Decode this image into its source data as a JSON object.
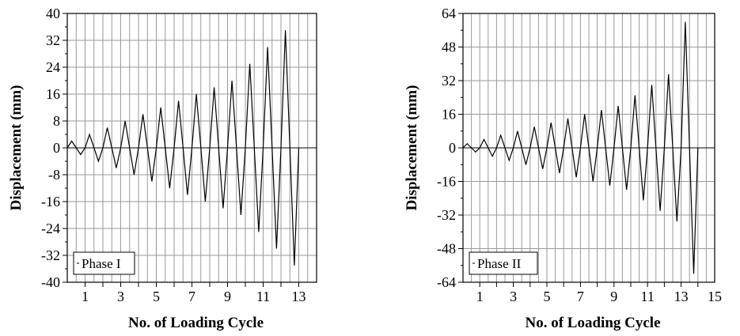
{
  "chart_data": [
    {
      "type": "line",
      "xlabel": "No. of Loading Cycle",
      "ylabel": "Displacement (mm)",
      "xlim": [
        0,
        14
      ],
      "ylim": [
        -40,
        40
      ],
      "xticks": [
        "1",
        "3",
        "5",
        "7",
        "9",
        "11",
        "13"
      ],
      "yticks": [
        "40",
        "32",
        "24",
        "16",
        "8",
        "0",
        "-8",
        "-16",
        "-24",
        "-32",
        "-40"
      ],
      "grid": true,
      "legend_position": "bottom-left",
      "series": [
        {
          "name": "Phase I",
          "x": [
            0,
            0.25,
            0.5,
            0.75,
            1.0,
            1.25,
            1.5,
            1.75,
            2.0,
            2.25,
            2.5,
            2.75,
            3.0,
            3.25,
            3.5,
            3.75,
            4.0,
            4.25,
            4.5,
            4.75,
            5.0,
            5.25,
            5.5,
            5.75,
            6.0,
            6.25,
            6.5,
            6.75,
            7.0,
            7.25,
            7.5,
            7.75,
            8.0,
            8.25,
            8.5,
            8.75,
            9.0,
            9.25,
            9.5,
            9.75,
            10.0,
            10.25,
            10.5,
            10.75,
            11.0,
            11.25,
            11.5,
            11.75,
            12.0,
            12.25,
            12.5,
            12.75,
            13.0
          ],
          "y": [
            0,
            2,
            0,
            -2,
            0,
            4,
            0,
            -4,
            0,
            6,
            0,
            -6,
            0,
            8,
            0,
            -8,
            0,
            10,
            0,
            -10,
            0,
            12,
            0,
            -12,
            0,
            14,
            0,
            -14,
            0,
            16,
            0,
            -16,
            0,
            18,
            0,
            -18,
            0,
            20,
            0,
            -20,
            0,
            25,
            0,
            -25,
            0,
            30,
            0,
            -30,
            0,
            35,
            0,
            -35,
            0
          ]
        }
      ]
    },
    {
      "type": "line",
      "xlabel": "No. of Loading Cycle",
      "ylabel": "Displacement (mm)",
      "xlim": [
        0,
        15
      ],
      "ylim": [
        -64,
        64
      ],
      "xticks": [
        "1",
        "3",
        "5",
        "7",
        "9",
        "11",
        "13",
        "15"
      ],
      "yticks": [
        "64",
        "48",
        "32",
        "16",
        "0",
        "-16",
        "-32",
        "-48",
        "-64"
      ],
      "grid": true,
      "legend_position": "bottom-left",
      "series": [
        {
          "name": "Phase II",
          "x": [
            0,
            0.25,
            0.5,
            0.75,
            1.0,
            1.25,
            1.5,
            1.75,
            2.0,
            2.25,
            2.5,
            2.75,
            3.0,
            3.25,
            3.5,
            3.75,
            4.0,
            4.25,
            4.5,
            4.75,
            5.0,
            5.25,
            5.5,
            5.75,
            6.0,
            6.25,
            6.5,
            6.75,
            7.0,
            7.25,
            7.5,
            7.75,
            8.0,
            8.25,
            8.5,
            8.75,
            9.0,
            9.25,
            9.5,
            9.75,
            10.0,
            10.25,
            10.5,
            10.75,
            11.0,
            11.25,
            11.5,
            11.75,
            12.0,
            12.25,
            12.5,
            12.75,
            13.0,
            13.25,
            13.5,
            13.75,
            14.0
          ],
          "y": [
            0,
            2,
            0,
            -2,
            0,
            4,
            0,
            -4,
            0,
            6,
            0,
            -6,
            0,
            8,
            0,
            -8,
            0,
            10,
            0,
            -10,
            0,
            12,
            0,
            -12,
            0,
            14,
            0,
            -14,
            0,
            16,
            0,
            -16,
            0,
            18,
            0,
            -18,
            0,
            20,
            0,
            -20,
            0,
            25,
            0,
            -25,
            0,
            30,
            0,
            -30,
            0,
            35,
            0,
            -35,
            0,
            60,
            0,
            -60,
            0
          ]
        }
      ]
    }
  ]
}
